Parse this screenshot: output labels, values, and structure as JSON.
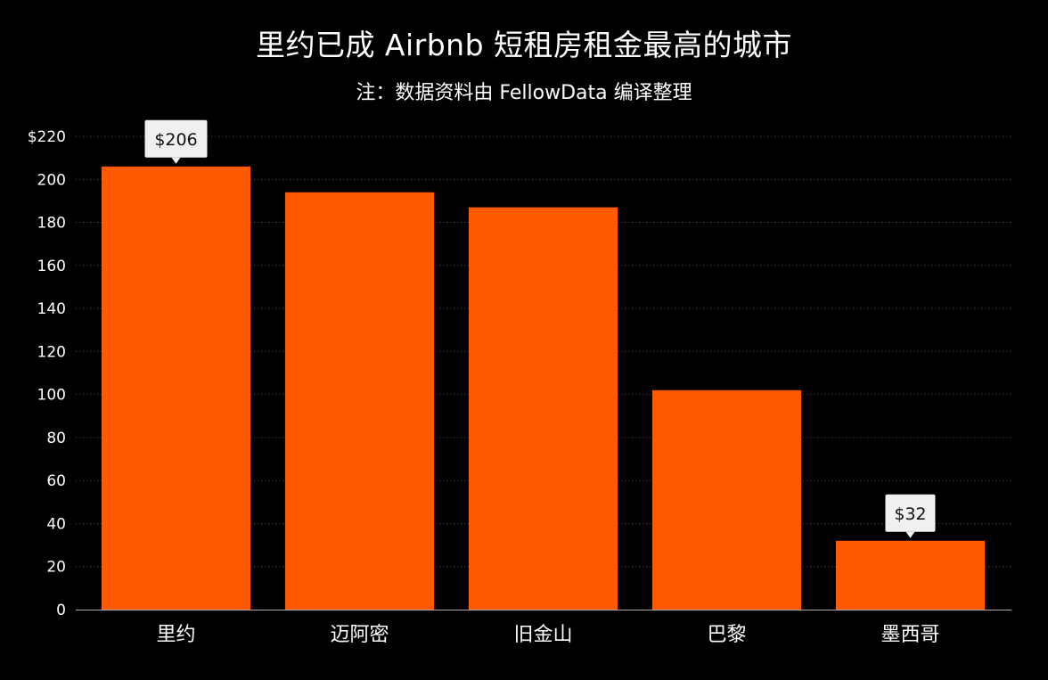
{
  "chart_data": {
    "type": "bar",
    "title": "里约已成 Airbnb 短租房租金最高的城市",
    "subtitle": "注：数据资料由 FellowData 编译整理",
    "categories": [
      "里约",
      "迈阿密",
      "旧金山",
      "巴黎",
      "墨西哥"
    ],
    "values": [
      206,
      194,
      187,
      102,
      32
    ],
    "ylim": [
      0,
      220
    ],
    "yticks": [
      0,
      20,
      40,
      60,
      80,
      100,
      120,
      140,
      160,
      180,
      200,
      220
    ],
    "ytick_labels": [
      "0",
      "20",
      "40",
      "60",
      "80",
      "100",
      "120",
      "140",
      "160",
      "180",
      "200",
      "$220"
    ],
    "data_labels": [
      {
        "category": "里约",
        "text": "$206"
      },
      {
        "category": "墨西哥",
        "text": "$32"
      }
    ],
    "grid": true,
    "legend": "none",
    "colors": {
      "bar": "#ff5a00",
      "background": "#000000",
      "text": "#ffffff",
      "grid": "#555555",
      "callout_bg": "#f0f0f0"
    }
  }
}
